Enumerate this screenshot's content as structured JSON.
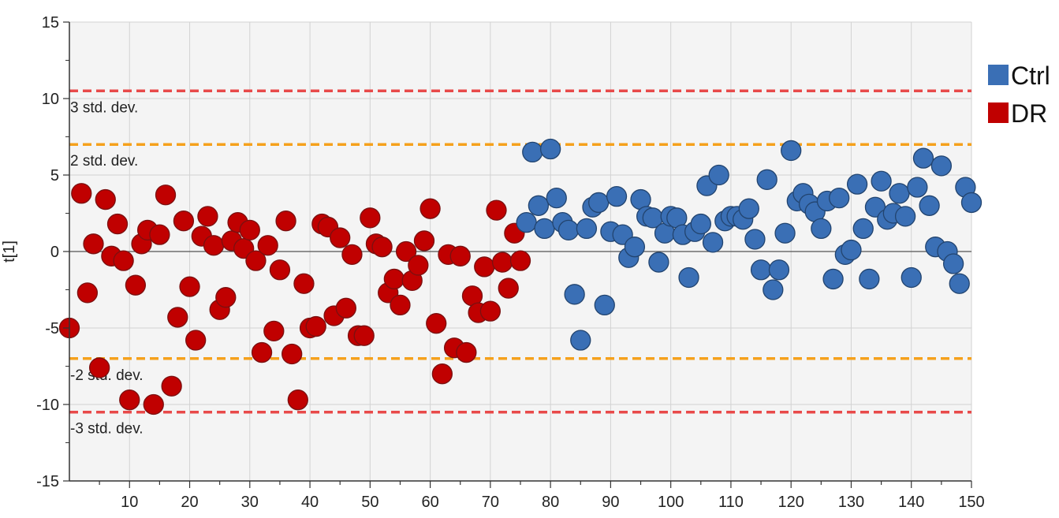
{
  "chart_data": {
    "type": "scatter",
    "ylabel": "t[1]",
    "xlim": [
      0,
      150
    ],
    "ylim": [
      -15,
      15
    ],
    "xticks": [
      10,
      20,
      30,
      40,
      50,
      60,
      70,
      80,
      90,
      100,
      110,
      120,
      130,
      140,
      150
    ],
    "yticks": [
      15,
      10,
      5,
      0,
      -5,
      -10,
      -15
    ],
    "grid": true,
    "legend_position": "right",
    "limit_lines": [
      {
        "value": 10.5,
        "label": "3 std. dev.",
        "color": "#e84a4a"
      },
      {
        "value": 7.0,
        "label": "2 std. dev.",
        "color": "#f5a11c"
      },
      {
        "value": -7.0,
        "label": "-2 std. dev.",
        "color": "#f5a11c"
      },
      {
        "value": -10.5,
        "label": "-3 std. dev.",
        "color": "#e84a4a"
      }
    ],
    "series": [
      {
        "name": "DR",
        "color": "#c00000",
        "edge": "#7a1010",
        "points": [
          [
            0,
            -5
          ],
          [
            2,
            3.8
          ],
          [
            3,
            -2.7
          ],
          [
            4,
            0.5
          ],
          [
            5,
            -7.6
          ],
          [
            6,
            3.4
          ],
          [
            7,
            -0.3
          ],
          [
            8,
            1.8
          ],
          [
            9,
            -0.6
          ],
          [
            10,
            -9.7
          ],
          [
            11,
            -2.2
          ],
          [
            12,
            0.5
          ],
          [
            13,
            1.4
          ],
          [
            14,
            -10
          ],
          [
            15,
            1.1
          ],
          [
            16,
            3.7
          ],
          [
            17,
            -8.8
          ],
          [
            18,
            -4.3
          ],
          [
            19,
            2
          ],
          [
            20,
            -2.3
          ],
          [
            21,
            -5.8
          ],
          [
            22,
            1
          ],
          [
            23,
            2.3
          ],
          [
            24,
            0.4
          ],
          [
            25,
            -3.8
          ],
          [
            26,
            -3
          ],
          [
            27,
            0.7
          ],
          [
            28,
            1.9
          ],
          [
            29,
            0.2
          ],
          [
            30,
            1.4
          ],
          [
            31,
            -0.6
          ],
          [
            32,
            -6.6
          ],
          [
            33,
            0.4
          ],
          [
            34,
            -5.2
          ],
          [
            35,
            -1.2
          ],
          [
            36,
            2
          ],
          [
            37,
            -6.7
          ],
          [
            38,
            -9.7
          ],
          [
            39,
            -2.1
          ],
          [
            40,
            -5
          ],
          [
            41,
            -4.9
          ],
          [
            42,
            1.8
          ],
          [
            43,
            1.6
          ],
          [
            44,
            -4.2
          ],
          [
            45,
            0.9
          ],
          [
            46,
            -3.7
          ],
          [
            47,
            -0.2
          ],
          [
            48,
            -5.5
          ],
          [
            49,
            -5.5
          ],
          [
            50,
            2.2
          ],
          [
            51,
            0.5
          ],
          [
            52,
            0.3
          ],
          [
            53,
            -2.7
          ],
          [
            54,
            -1.8
          ],
          [
            55,
            -3.5
          ],
          [
            56,
            0
          ],
          [
            57,
            -1.9
          ],
          [
            58,
            -0.9
          ],
          [
            59,
            0.7
          ],
          [
            60,
            2.8
          ],
          [
            61,
            -4.7
          ],
          [
            62,
            -8
          ],
          [
            63,
            -0.2
          ],
          [
            64,
            -6.3
          ],
          [
            65,
            -0.3
          ],
          [
            66,
            -6.6
          ],
          [
            67,
            -2.9
          ],
          [
            68,
            -4
          ],
          [
            69,
            -1
          ],
          [
            70,
            -3.9
          ],
          [
            71,
            2.7
          ],
          [
            72,
            -0.7
          ],
          [
            73,
            -2.4
          ],
          [
            74,
            1.2
          ],
          [
            75,
            -0.6
          ]
        ]
      },
      {
        "name": "Ctrl",
        "color": "#3a6fb5",
        "edge": "#22446f",
        "points": [
          [
            76,
            1.9
          ],
          [
            77,
            6.5
          ],
          [
            78,
            3
          ],
          [
            79,
            1.5
          ],
          [
            80,
            6.7
          ],
          [
            81,
            3.5
          ],
          [
            82,
            1.9
          ],
          [
            83,
            1.4
          ],
          [
            84,
            -2.8
          ],
          [
            85,
            -5.8
          ],
          [
            86,
            1.5
          ],
          [
            87,
            2.9
          ],
          [
            88,
            3.2
          ],
          [
            89,
            -3.5
          ],
          [
            90,
            1.3
          ],
          [
            91,
            3.6
          ],
          [
            92,
            1.1
          ],
          [
            93,
            -0.4
          ],
          [
            94,
            0.3
          ],
          [
            95,
            3.4
          ],
          [
            96,
            2.3
          ],
          [
            97,
            2.2
          ],
          [
            98,
            -0.7
          ],
          [
            99,
            1.2
          ],
          [
            100,
            2.3
          ],
          [
            101,
            2.2
          ],
          [
            102,
            1.1
          ],
          [
            103,
            -1.7
          ],
          [
            104,
            1.3
          ],
          [
            105,
            1.8
          ],
          [
            106,
            4.3
          ],
          [
            107,
            0.6
          ],
          [
            108,
            5
          ],
          [
            109,
            2
          ],
          [
            110,
            2.3
          ],
          [
            111,
            2.3
          ],
          [
            112,
            2.1
          ],
          [
            113,
            2.8
          ],
          [
            114,
            0.8
          ],
          [
            115,
            -1.2
          ],
          [
            116,
            4.7
          ],
          [
            117,
            -2.5
          ],
          [
            118,
            -1.2
          ],
          [
            119,
            1.2
          ],
          [
            120,
            6.6
          ],
          [
            121,
            3.3
          ],
          [
            122,
            3.8
          ],
          [
            123,
            3.1
          ],
          [
            124,
            2.6
          ],
          [
            125,
            1.5
          ],
          [
            126,
            3.3
          ],
          [
            127,
            -1.8
          ],
          [
            128,
            3.5
          ],
          [
            129,
            -0.2
          ],
          [
            130,
            0.1
          ],
          [
            131,
            4.4
          ],
          [
            132,
            1.5
          ],
          [
            133,
            -1.8
          ],
          [
            134,
            2.9
          ],
          [
            135,
            4.6
          ],
          [
            136,
            2.1
          ],
          [
            137,
            2.5
          ],
          [
            138,
            3.8
          ],
          [
            139,
            2.3
          ],
          [
            140,
            -1.7
          ],
          [
            141,
            4.2
          ],
          [
            142,
            6.1
          ],
          [
            143,
            3
          ],
          [
            144,
            0.3
          ],
          [
            145,
            5.6
          ],
          [
            146,
            0
          ],
          [
            147,
            -0.8
          ],
          [
            148,
            -2.1
          ],
          [
            149,
            4.2
          ],
          [
            150,
            3.2
          ]
        ]
      }
    ],
    "legend": [
      {
        "label": "Ctrl",
        "color": "#3a6fb5"
      },
      {
        "label": "DR",
        "color": "#c00000"
      }
    ]
  }
}
